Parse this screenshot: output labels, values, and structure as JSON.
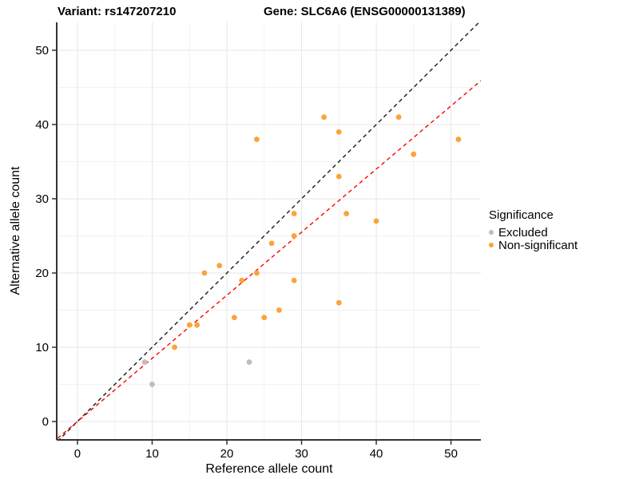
{
  "chart_data": {
    "type": "scatter",
    "titles": {
      "left": "Variant: rs147207210",
      "right": "Gene: SLC6A6 (ENSG00000131389)"
    },
    "xlabel": "Reference allele count",
    "ylabel": "Alternative allele count",
    "xlim": [
      -2.67,
      54.0
    ],
    "ylim": [
      -2.37,
      53.76
    ],
    "xticks": [
      0,
      10,
      20,
      30,
      40,
      50
    ],
    "yticks": [
      0,
      10,
      20,
      30,
      40,
      50
    ],
    "grid": {
      "major": [
        0,
        10,
        20,
        30,
        40,
        50
      ],
      "minor": [
        5,
        15,
        25,
        35,
        45
      ],
      "major_color": "#e6e6e6",
      "minor_color": "#f2f2f2"
    },
    "axis_color": "#333333",
    "text_color": "#000000",
    "series": [
      {
        "name": "Excluded",
        "color": "#bdbdbd",
        "points": [
          [
            9,
            8
          ],
          [
            10,
            5
          ],
          [
            23,
            8
          ]
        ]
      },
      {
        "name": "Non-significant",
        "color": "#faa43a",
        "points": [
          [
            13,
            10
          ],
          [
            15,
            13
          ],
          [
            16,
            13
          ],
          [
            17,
            20
          ],
          [
            19,
            21
          ],
          [
            21,
            14
          ],
          [
            22,
            19
          ],
          [
            24,
            20
          ],
          [
            24,
            38
          ],
          [
            25,
            14
          ],
          [
            26,
            24
          ],
          [
            27,
            15
          ],
          [
            29,
            19
          ],
          [
            29,
            25
          ],
          [
            29,
            28
          ],
          [
            33,
            41
          ],
          [
            35,
            16
          ],
          [
            35,
            33
          ],
          [
            35,
            39
          ],
          [
            36,
            28
          ],
          [
            40,
            27
          ],
          [
            43,
            41
          ],
          [
            45,
            36
          ],
          [
            51,
            38
          ]
        ]
      }
    ],
    "reference_lines": [
      {
        "name": "identity-line",
        "slope": 1.0,
        "intercept": 0,
        "color": "#1a1a1a",
        "style": "dashed"
      },
      {
        "name": "fitted-line",
        "slope": 0.85,
        "intercept": 0,
        "color": "#ff0000",
        "style": "dashed"
      }
    ],
    "legend": {
      "title": "Significance",
      "position": "right",
      "entries": [
        {
          "label": "Excluded",
          "color": "#bdbdbd"
        },
        {
          "label": "Non-significant",
          "color": "#faa43a"
        }
      ]
    }
  }
}
